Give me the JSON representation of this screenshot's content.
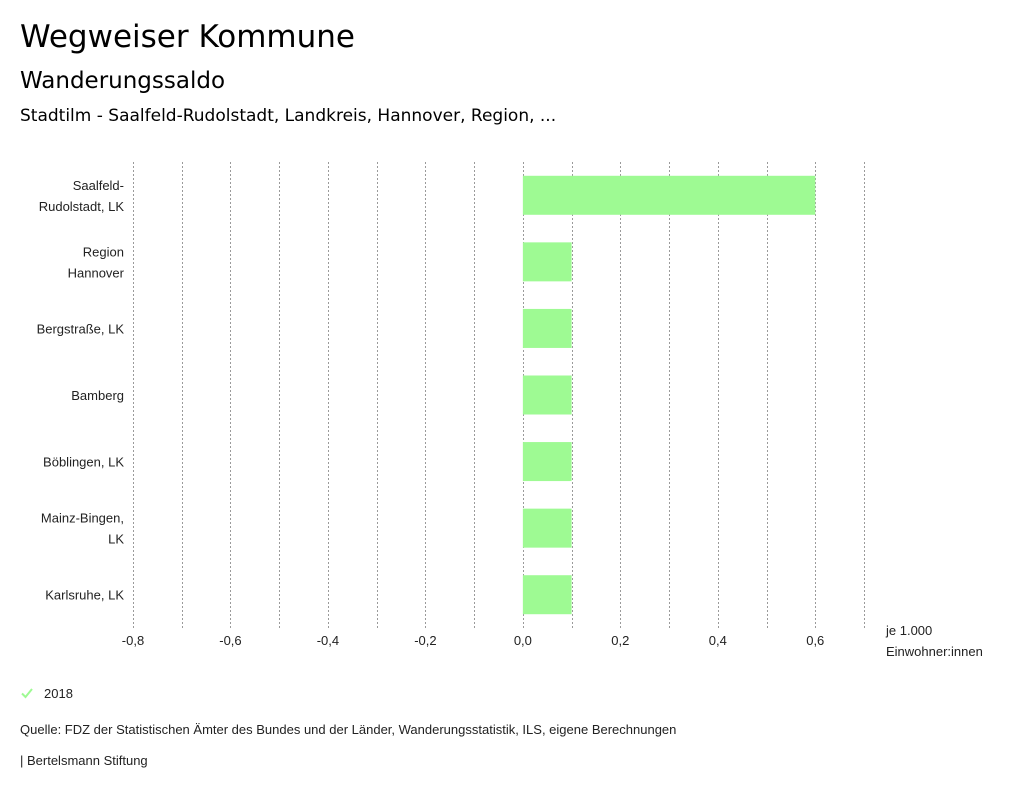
{
  "header": {
    "title": "Wegweiser Kommune",
    "subtitle": "Wanderungssaldo",
    "location": "Stadtilm - Saalfeld-Rudolstadt, Landkreis, Hannover, Region, ..."
  },
  "chart_data": {
    "type": "bar",
    "orientation": "horizontal",
    "categories": [
      [
        "Saalfeld-",
        "Rudolstadt, LK"
      ],
      [
        "Region",
        "Hannover"
      ],
      [
        "Bergstraße, LK"
      ],
      [
        "Bamberg"
      ],
      [
        "Böblingen, LK"
      ],
      [
        "Mainz-Bingen,",
        "LK"
      ],
      [
        "Karlsruhe, LK"
      ]
    ],
    "series": [
      {
        "name": "2018",
        "color": "#9efa93",
        "values": [
          0.6,
          0.1,
          0.1,
          0.1,
          0.1,
          0.1,
          0.1
        ]
      }
    ],
    "xlim": [
      -0.8,
      0.7
    ],
    "xticks": [
      -0.8,
      -0.6,
      -0.4,
      -0.2,
      0.0,
      0.2,
      0.4,
      0.6
    ],
    "xtick_labels": [
      "-0,8",
      "-0,6",
      "-0,4",
      "-0,2",
      "0,0",
      "0,2",
      "0,4",
      "0,6"
    ],
    "gridlines": [
      -0.8,
      -0.7,
      -0.6,
      -0.5,
      -0.4,
      -0.3,
      -0.2,
      -0.1,
      0.0,
      0.1,
      0.2,
      0.3,
      0.4,
      0.5,
      0.6,
      0.7
    ],
    "unit_label": [
      "je 1.000",
      "Einwohner:innen"
    ]
  },
  "legend": {
    "label": "2018",
    "color": "#9efa93"
  },
  "footer": {
    "source": "Quelle: FDZ der Statistischen Ämter des Bundes und der Länder, Wanderungsstatistik, ILS, eigene Berechnungen",
    "brand": "| Bertelsmann Stiftung"
  }
}
